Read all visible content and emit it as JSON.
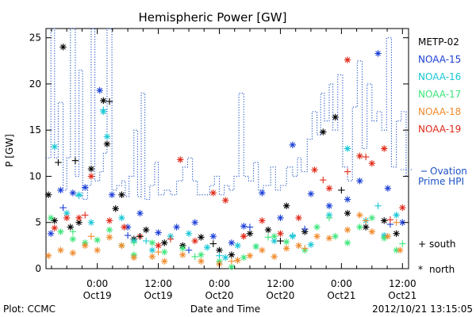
{
  "chart_data": {
    "type": "scatter",
    "title": "Hemispheric Power [GW]",
    "ylabel": "P [GW]",
    "xlabel": "Date and Time",
    "ylim": [
      0,
      26
    ],
    "yticks": [
      0,
      5,
      10,
      15,
      20,
      25
    ],
    "xlim": [
      -0.42,
      2.55
    ],
    "xticks": [
      {
        "x": 0.0,
        "top": "0:00",
        "bottom": "Oct19"
      },
      {
        "x": 0.5,
        "top": "12:00",
        "bottom": "Oct19"
      },
      {
        "x": 1.0,
        "top": "0:00",
        "bottom": "Oct20"
      },
      {
        "x": 1.5,
        "top": "12:00",
        "bottom": "Oct20"
      },
      {
        "x": 2.0,
        "top": "0:00",
        "bottom": "Oct21"
      },
      {
        "x": 2.5,
        "top": "12:00",
        "bottom": "Oct21"
      }
    ],
    "x_unit_note": "days relative to 2012-10-19 00:00 UT",
    "legend_position": "right",
    "series": [
      {
        "name": "METP-02",
        "color": "#000000",
        "marker": "asterisk",
        "points": [
          [
            -0.4,
            8.0
          ],
          [
            -0.35,
            5.2
          ],
          [
            -0.28,
            24.0
          ],
          [
            -0.22,
            4.5
          ],
          [
            -0.15,
            5.0
          ],
          [
            -0.05,
            10.8
          ],
          [
            0.05,
            18.2
          ],
          [
            0.08,
            13.5
          ],
          [
            0.15,
            6.5
          ],
          [
            0.2,
            8.0
          ],
          [
            0.3,
            3.2
          ],
          [
            0.4,
            4.2
          ],
          [
            0.55,
            2.8
          ],
          [
            0.7,
            2.5
          ],
          [
            0.85,
            3.4
          ],
          [
            1.0,
            2.0
          ],
          [
            1.1,
            1.5
          ],
          [
            1.25,
            3.8
          ],
          [
            1.4,
            4.2
          ],
          [
            1.55,
            6.8
          ],
          [
            1.7,
            4.0
          ],
          [
            1.85,
            14.8
          ],
          [
            1.95,
            16.4
          ],
          [
            2.05,
            6.0
          ],
          [
            2.2,
            4.5
          ],
          [
            2.35,
            5.2
          ],
          [
            2.45,
            3.8
          ]
        ]
      },
      {
        "name": "NOAA-15",
        "color": "#1c3fd6",
        "marker": "asterisk",
        "points": [
          [
            -0.38,
            3.8
          ],
          [
            -0.3,
            8.5
          ],
          [
            -0.2,
            8.2
          ],
          [
            -0.1,
            8.8
          ],
          [
            0.02,
            19.3
          ],
          [
            0.12,
            8.0
          ],
          [
            0.25,
            4.5
          ],
          [
            0.35,
            6.0
          ],
          [
            0.5,
            3.9
          ],
          [
            0.65,
            4.5
          ],
          [
            0.8,
            5.0
          ],
          [
            0.95,
            3.5
          ],
          [
            1.1,
            2.8
          ],
          [
            1.2,
            4.6
          ],
          [
            1.35,
            8.2
          ],
          [
            1.5,
            5.5
          ],
          [
            1.6,
            13.4
          ],
          [
            1.75,
            8.1
          ],
          [
            1.9,
            6.8
          ],
          [
            2.05,
            7.5
          ],
          [
            2.15,
            9.5
          ],
          [
            2.3,
            23.3
          ],
          [
            2.38,
            8.7
          ],
          [
            2.5,
            5.0
          ]
        ]
      },
      {
        "name": "NOAA-16",
        "color": "#19c7d6",
        "marker": "asterisk",
        "points": [
          [
            -0.35,
            13.2
          ],
          [
            -0.25,
            6.0
          ],
          [
            -0.15,
            8.0
          ],
          [
            -0.05,
            5.0
          ],
          [
            0.05,
            17.0
          ],
          [
            0.08,
            14.3
          ],
          [
            0.2,
            5.5
          ],
          [
            0.3,
            3.0
          ],
          [
            0.45,
            2.0
          ],
          [
            0.6,
            3.5
          ],
          [
            0.75,
            3.8
          ],
          [
            0.9,
            2.3
          ],
          [
            1.05,
            1.2
          ],
          [
            1.15,
            2.5
          ],
          [
            1.3,
            2.4
          ],
          [
            1.45,
            3.0
          ],
          [
            1.6,
            3.5
          ],
          [
            1.75,
            2.6
          ],
          [
            1.9,
            5.8
          ],
          [
            2.05,
            13.0
          ],
          [
            2.2,
            5.2
          ],
          [
            2.35,
            3.6
          ],
          [
            2.45,
            5.8
          ]
        ]
      },
      {
        "name": "NOAA-17",
        "color": "#3ce67a",
        "marker": "asterisk",
        "points": [
          [
            -0.38,
            5.5
          ],
          [
            -0.3,
            4.0
          ],
          [
            -0.2,
            3.2
          ],
          [
            -0.1,
            2.8
          ],
          [
            0.0,
            3.1
          ],
          [
            0.1,
            4.2
          ],
          [
            0.2,
            2.5
          ],
          [
            0.3,
            1.5
          ],
          [
            0.45,
            2.8
          ],
          [
            0.55,
            1.8
          ],
          [
            0.7,
            2.2
          ],
          [
            0.85,
            1.5
          ],
          [
            1.0,
            0.8
          ],
          [
            1.1,
            0.2
          ],
          [
            1.2,
            1.2
          ],
          [
            1.3,
            2.4
          ],
          [
            1.45,
            3.5
          ],
          [
            1.55,
            2.9
          ],
          [
            1.7,
            2.0
          ],
          [
            1.8,
            4.5
          ],
          [
            1.95,
            3.5
          ],
          [
            2.05,
            2.8
          ],
          [
            2.15,
            4.5
          ],
          [
            2.25,
            5.5
          ],
          [
            2.35,
            3.3
          ],
          [
            2.45,
            2.0
          ]
        ]
      },
      {
        "name": "NOAA-18",
        "color": "#f08a2c",
        "marker": "asterisk",
        "points": [
          [
            -0.4,
            1.4
          ],
          [
            -0.3,
            2.0
          ],
          [
            -0.2,
            1.7
          ],
          [
            -0.1,
            2.5
          ],
          [
            0.0,
            2.0
          ],
          [
            0.1,
            3.4
          ],
          [
            0.2,
            2.5
          ],
          [
            0.3,
            1.2
          ],
          [
            0.45,
            1.3
          ],
          [
            0.55,
            0.8
          ],
          [
            0.7,
            1.5
          ],
          [
            0.85,
            0.8
          ],
          [
            1.0,
            0.5
          ],
          [
            1.15,
            0.9
          ],
          [
            1.25,
            1.4
          ],
          [
            1.35,
            2.0
          ],
          [
            1.45,
            1.3
          ],
          [
            1.55,
            2.2
          ],
          [
            1.65,
            2.5
          ],
          [
            1.8,
            3.5
          ],
          [
            1.9,
            3.3
          ],
          [
            2.05,
            4.2
          ],
          [
            2.15,
            5.8
          ],
          [
            2.25,
            4.0
          ],
          [
            2.38,
            3.5
          ],
          [
            2.48,
            2.0
          ]
        ]
      },
      {
        "name": "NOAA-19",
        "color": "#e02a1a",
        "marker": "asterisk",
        "points": [
          [
            -0.35,
            4.4
          ],
          [
            -0.25,
            5.5
          ],
          [
            -0.15,
            5.5
          ],
          [
            -0.05,
            10.0
          ],
          [
            0.1,
            5.2
          ],
          [
            0.22,
            4.5
          ],
          [
            0.35,
            3.5
          ],
          [
            0.5,
            2.5
          ],
          [
            0.68,
            11.8
          ],
          [
            0.8,
            3.0
          ],
          [
            0.95,
            8.2
          ],
          [
            1.05,
            7.4
          ],
          [
            1.2,
            3.5
          ],
          [
            1.35,
            5.2
          ],
          [
            1.5,
            3.8
          ],
          [
            1.65,
            5.5
          ],
          [
            1.78,
            10.7
          ],
          [
            1.9,
            8.7
          ],
          [
            2.05,
            22.6
          ],
          [
            2.15,
            12.2
          ],
          [
            2.25,
            11.4
          ],
          [
            2.35,
            13.0
          ],
          [
            2.5,
            6.6
          ]
        ]
      }
    ],
    "south_series": [
      {
        "color": "#000000",
        "points": [
          [
            -0.32,
            11.5
          ],
          [
            -0.18,
            11.7
          ],
          [
            0.1,
            18.1
          ],
          [
            0.35,
            3.5
          ],
          [
            0.95,
            2.7
          ],
          [
            1.5,
            3.0
          ],
          [
            2.0,
            8.5
          ]
        ]
      },
      {
        "color": "#1c3fd6",
        "points": [
          [
            -0.28,
            6.6
          ],
          [
            0.25,
            3.6
          ],
          [
            0.75,
            2.0
          ],
          [
            1.25,
            4.5
          ],
          [
            1.7,
            4.3
          ],
          [
            2.4,
            4.8
          ]
        ]
      },
      {
        "color": "#19c7d6",
        "points": [
          [
            -0.15,
            7.9
          ],
          [
            0.05,
            17.2
          ],
          [
            0.4,
            3.0
          ],
          [
            1.0,
            1.4
          ],
          [
            1.6,
            3.6
          ],
          [
            2.3,
            6.8
          ]
        ]
      },
      {
        "color": "#3ce67a",
        "points": [
          [
            -0.2,
            4.0
          ],
          [
            0.3,
            2.8
          ],
          [
            0.8,
            1.3
          ],
          [
            1.4,
            3.4
          ],
          [
            1.9,
            5.5
          ],
          [
            2.5,
            2.7
          ]
        ]
      },
      {
        "color": "#f08a2c",
        "points": [
          [
            -0.05,
            3.5
          ],
          [
            0.5,
            1.8
          ],
          [
            1.1,
            0.8
          ],
          [
            1.7,
            2.2
          ],
          [
            2.2,
            5.2
          ],
          [
            2.45,
            5.0
          ]
        ]
      },
      {
        "color": "#e02a1a",
        "points": [
          [
            -0.1,
            5.8
          ],
          [
            0.6,
            3.2
          ],
          [
            1.2,
            3.5
          ],
          [
            1.85,
            9.6
          ],
          [
            2.05,
            10.5
          ],
          [
            2.2,
            12.1
          ],
          [
            2.4,
            5.3
          ]
        ]
      }
    ],
    "ovation": {
      "name": "Ovation Prime HPI",
      "legend_top": "Ovation",
      "legend_bottom": "Prime HPI",
      "color": "#1c52c7",
      "style": "dotted-step",
      "points": [
        [
          -0.42,
          12.0
        ],
        [
          -0.38,
          26.0
        ],
        [
          -0.35,
          12.0
        ],
        [
          -0.32,
          18.0
        ],
        [
          -0.28,
          8.5
        ],
        [
          -0.25,
          12.0
        ],
        [
          -0.22,
          26.0
        ],
        [
          -0.18,
          10.0
        ],
        [
          -0.15,
          21.5
        ],
        [
          -0.12,
          7.5
        ],
        [
          -0.08,
          9.0
        ],
        [
          -0.05,
          26.0
        ],
        [
          -0.02,
          9.5
        ],
        [
          0.02,
          10.5
        ],
        [
          0.05,
          12.5
        ],
        [
          0.08,
          26.0
        ],
        [
          0.12,
          8.5
        ],
        [
          0.16,
          9.0
        ],
        [
          0.2,
          9.5
        ],
        [
          0.23,
          7.8
        ],
        [
          0.26,
          10.0
        ],
        [
          0.3,
          15.0
        ],
        [
          0.33,
          7.8
        ],
        [
          0.36,
          19.0
        ],
        [
          0.39,
          7.5
        ],
        [
          0.43,
          9.0
        ],
        [
          0.47,
          11.5
        ],
        [
          0.5,
          8.0
        ],
        [
          0.55,
          8.5
        ],
        [
          0.6,
          8.0
        ],
        [
          0.65,
          9.5
        ],
        [
          0.7,
          11.0
        ],
        [
          0.74,
          12.0
        ],
        [
          0.78,
          9.5
        ],
        [
          0.82,
          8.0
        ],
        [
          0.88,
          8.0
        ],
        [
          0.92,
          9.0
        ],
        [
          0.96,
          10.0
        ],
        [
          1.0,
          8.0
        ],
        [
          1.04,
          9.0
        ],
        [
          1.08,
          8.5
        ],
        [
          1.12,
          10.0
        ],
        [
          1.16,
          19.0
        ],
        [
          1.2,
          10.0
        ],
        [
          1.24,
          9.5
        ],
        [
          1.28,
          11.5
        ],
        [
          1.32,
          8.5
        ],
        [
          1.36,
          9.0
        ],
        [
          1.42,
          11.0
        ],
        [
          1.46,
          8.5
        ],
        [
          1.5,
          9.0
        ],
        [
          1.55,
          11.0
        ],
        [
          1.6,
          10.0
        ],
        [
          1.64,
          12.0
        ],
        [
          1.67,
          10.5
        ],
        [
          1.72,
          14.0
        ],
        [
          1.76,
          17.0
        ],
        [
          1.8,
          14.5
        ],
        [
          1.83,
          19.0
        ],
        [
          1.86,
          16.0
        ],
        [
          1.9,
          20.0
        ],
        [
          1.93,
          15.0
        ],
        [
          1.97,
          21.0
        ],
        [
          2.01,
          11.0
        ],
        [
          2.05,
          9.5
        ],
        [
          2.09,
          17.5
        ],
        [
          2.13,
          22.5
        ],
        [
          2.17,
          13.0
        ],
        [
          2.21,
          20.0
        ],
        [
          2.25,
          16.0
        ],
        [
          2.29,
          17.0
        ],
        [
          2.33,
          15.0
        ],
        [
          2.37,
          25.0
        ],
        [
          2.41,
          11.0
        ],
        [
          2.45,
          16.0
        ],
        [
          2.49,
          17.0
        ],
        [
          2.53,
          10.0
        ],
        [
          2.55,
          10.0
        ]
      ]
    },
    "legend_markers": {
      "south_symbol": "+",
      "south_label": "south",
      "north_symbol": "*",
      "north_label": "north"
    }
  },
  "footer": {
    "plot_label": "Plot: CCMC",
    "timestamp": "2012/10/21  13:15:05"
  }
}
